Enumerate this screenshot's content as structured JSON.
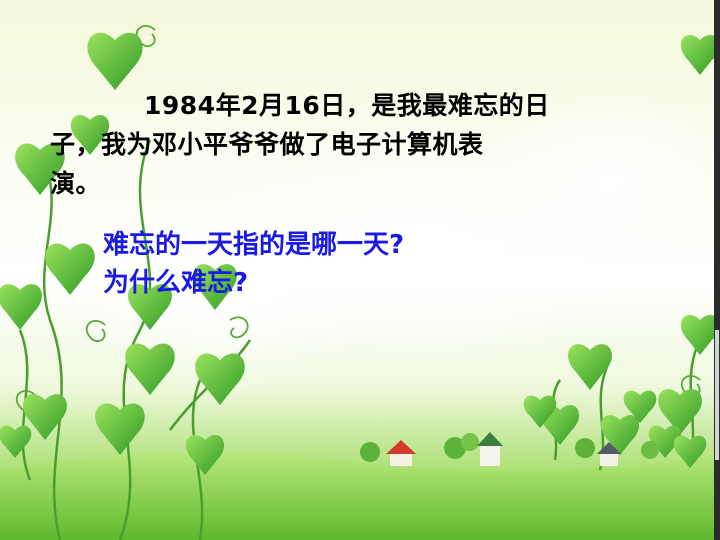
{
  "slide": {
    "paragraph_indent": "",
    "paragraph_text": "1984年2月16日，是我最难忘的日子，我为邓小平爷爷做了电子计算机表演。",
    "paragraph_lines": [
      "1984年2月16日，是我最难忘的日",
      "子，我为邓小平爷爷做了电子计算机表",
      "演。"
    ],
    "question_1": "难忘的一天指的是哪一天?",
    "question_2": "为什么难忘?"
  },
  "colors": {
    "question_text": "#1a1ae6",
    "body_text": "#000000",
    "leaf_green": "#5cc23a",
    "grass_green": "#7ccb40"
  },
  "icons": [
    "leaf-vine-decoration",
    "cottage-icon",
    "tree-icon",
    "cloud-decoration"
  ]
}
